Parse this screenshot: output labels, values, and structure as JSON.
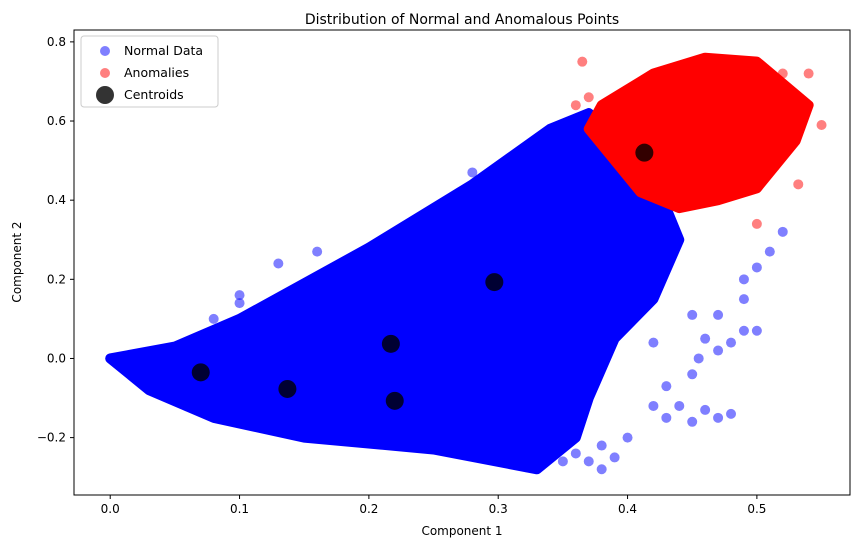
{
  "chart_data": {
    "type": "scatter",
    "title": "Distribution of Normal and Anomalous Points",
    "xlabel": "Component 1",
    "ylabel": "Component 2",
    "xlim": [
      -0.028,
      0.572
    ],
    "ylim": [
      -0.345,
      0.83
    ],
    "xticks": [
      0.0,
      0.1,
      0.2,
      0.3,
      0.4,
      0.5
    ],
    "xtick_labels": [
      "0.0",
      "0.1",
      "0.2",
      "0.3",
      "0.4",
      "0.5"
    ],
    "yticks": [
      -0.2,
      0.0,
      0.2,
      0.4,
      0.6,
      0.8
    ],
    "ytick_labels": [
      "−0.2",
      "0.0",
      "0.2",
      "0.4",
      "0.6",
      "0.8"
    ],
    "grid": false,
    "legend_position": "top-left",
    "series": [
      {
        "name": "Normal Data",
        "color": "#0000ff",
        "alpha": 0.5,
        "region_vertices": [
          [
            0.0,
            0.0
          ],
          [
            0.05,
            0.03
          ],
          [
            0.1,
            0.1
          ],
          [
            0.2,
            0.28
          ],
          [
            0.28,
            0.44
          ],
          [
            0.34,
            0.58
          ],
          [
            0.37,
            0.62
          ],
          [
            0.41,
            0.52
          ],
          [
            0.43,
            0.38
          ],
          [
            0.44,
            0.3
          ],
          [
            0.42,
            0.15
          ],
          [
            0.39,
            0.05
          ],
          [
            0.37,
            -0.1
          ],
          [
            0.36,
            -0.2
          ],
          [
            0.33,
            -0.28
          ],
          [
            0.25,
            -0.23
          ],
          [
            0.15,
            -0.2
          ],
          [
            0.08,
            -0.15
          ],
          [
            0.03,
            -0.08
          ]
        ],
        "outliers": [
          [
            0.42,
            -0.12
          ],
          [
            0.44,
            -0.12
          ],
          [
            0.46,
            -0.13
          ],
          [
            0.47,
            -0.15
          ],
          [
            0.45,
            -0.16
          ],
          [
            0.48,
            -0.14
          ],
          [
            0.43,
            -0.15
          ],
          [
            0.455,
            0.0
          ],
          [
            0.42,
            0.04
          ],
          [
            0.43,
            -0.07
          ],
          [
            0.46,
            0.05
          ],
          [
            0.48,
            0.04
          ],
          [
            0.45,
            0.11
          ],
          [
            0.47,
            0.11
          ],
          [
            0.49,
            0.15
          ],
          [
            0.5,
            0.23
          ],
          [
            0.49,
            0.2
          ],
          [
            0.52,
            0.32
          ],
          [
            0.51,
            0.27
          ],
          [
            0.49,
            0.07
          ],
          [
            0.47,
            0.02
          ],
          [
            0.37,
            -0.26
          ],
          [
            0.38,
            -0.28
          ],
          [
            0.39,
            -0.25
          ],
          [
            0.4,
            -0.2
          ],
          [
            0.38,
            -0.22
          ],
          [
            0.36,
            -0.24
          ],
          [
            0.35,
            -0.26
          ],
          [
            0.34,
            0.44
          ],
          [
            0.31,
            0.48
          ],
          [
            0.28,
            0.47
          ],
          [
            0.27,
            0.42
          ],
          [
            0.18,
            0.24
          ],
          [
            0.16,
            0.27
          ],
          [
            0.13,
            0.24
          ],
          [
            0.1,
            0.16
          ],
          [
            0.1,
            0.14
          ],
          [
            0.08,
            0.1
          ],
          [
            0.45,
            -0.04
          ],
          [
            0.5,
            0.07
          ]
        ]
      },
      {
        "name": "Anomalies",
        "color": "#ff0000",
        "alpha": 0.5,
        "region_vertices": [
          [
            0.38,
            0.64
          ],
          [
            0.42,
            0.72
          ],
          [
            0.46,
            0.76
          ],
          [
            0.5,
            0.75
          ],
          [
            0.54,
            0.64
          ],
          [
            0.53,
            0.55
          ],
          [
            0.5,
            0.43
          ],
          [
            0.47,
            0.4
          ],
          [
            0.44,
            0.38
          ],
          [
            0.41,
            0.42
          ],
          [
            0.39,
            0.5
          ],
          [
            0.37,
            0.58
          ]
        ],
        "outliers": [
          [
            0.365,
            0.75
          ],
          [
            0.36,
            0.64
          ],
          [
            0.532,
            0.44
          ],
          [
            0.5,
            0.34
          ],
          [
            0.55,
            0.59
          ],
          [
            0.54,
            0.72
          ],
          [
            0.52,
            0.72
          ],
          [
            0.37,
            0.66
          ]
        ]
      },
      {
        "name": "Centroids",
        "color": "#000000",
        "alpha": 0.8,
        "points": [
          [
            0.07,
            -0.035
          ],
          [
            0.137,
            -0.077
          ],
          [
            0.217,
            0.037
          ],
          [
            0.22,
            -0.107
          ],
          [
            0.297,
            0.193
          ],
          [
            0.413,
            0.52
          ]
        ]
      }
    ]
  }
}
